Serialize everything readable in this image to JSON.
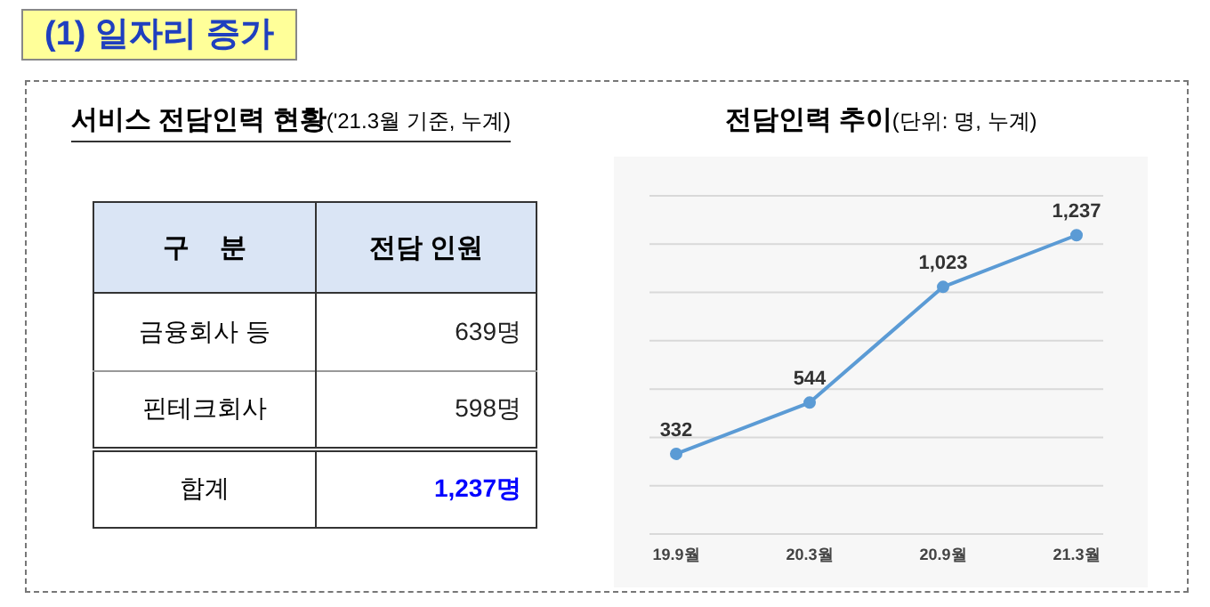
{
  "chart_data": [
    {
      "type": "other",
      "title": "서비스 전담인력 현황",
      "subtitle": "('21.3월 기준, 누계)",
      "annotations": [
        "(1) 일자리 증가"
      ],
      "xlabel": "구    분",
      "ylabel": "전담 인원",
      "categories": [
        "금융회사 등",
        "핀테크회사",
        "합계"
      ],
      "value_labels": [
        "639명",
        "598명",
        "1,237명"
      ],
      "colors": [
        "#222222",
        "#222222",
        "#0000ff"
      ]
    },
    {
      "type": "line",
      "title": "전담인력 추이",
      "subtitle": "(단위: 명, 누계)",
      "categories": [
        "19.9월",
        "20.3월",
        "20.9월",
        "21.3월"
      ],
      "series": [
        {
          "color": "#5b9bd5",
          "values": [
            332,
            544,
            1023,
            1237
          ],
          "value_labels": [
            "332",
            "544",
            "1,023",
            "1,237"
          ]
        }
      ],
      "grid": "y",
      "marker": "circle",
      "line_style": "solid"
    }
  ]
}
